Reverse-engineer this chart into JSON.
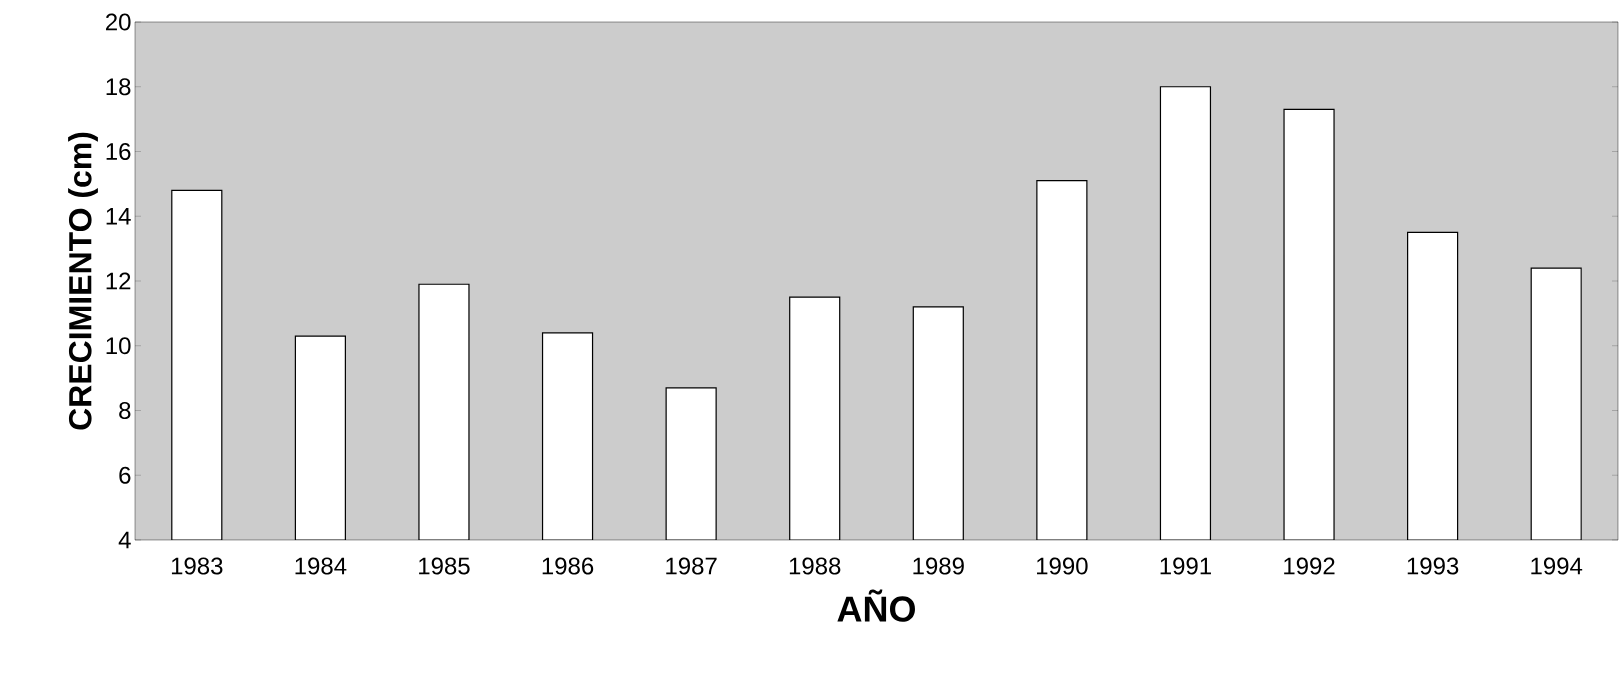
{
  "chart_data": {
    "type": "bar",
    "xlabel": "AÑO",
    "ylabel": "CRECIMIENTO  (cm)",
    "categories": [
      "1983",
      "1984",
      "1985",
      "1986",
      "1987",
      "1988",
      "1989",
      "1990",
      "1991",
      "1992",
      "1993",
      "1994"
    ],
    "values": [
      14.8,
      10.3,
      11.9,
      10.4,
      8.7,
      11.5,
      11.2,
      15.1,
      18.0,
      17.3,
      13.5,
      12.4
    ],
    "color": "#ffffff",
    "ylim": [
      4,
      20
    ],
    "yticks": [
      4,
      6,
      8,
      10,
      12,
      14,
      16,
      18,
      20
    ]
  }
}
